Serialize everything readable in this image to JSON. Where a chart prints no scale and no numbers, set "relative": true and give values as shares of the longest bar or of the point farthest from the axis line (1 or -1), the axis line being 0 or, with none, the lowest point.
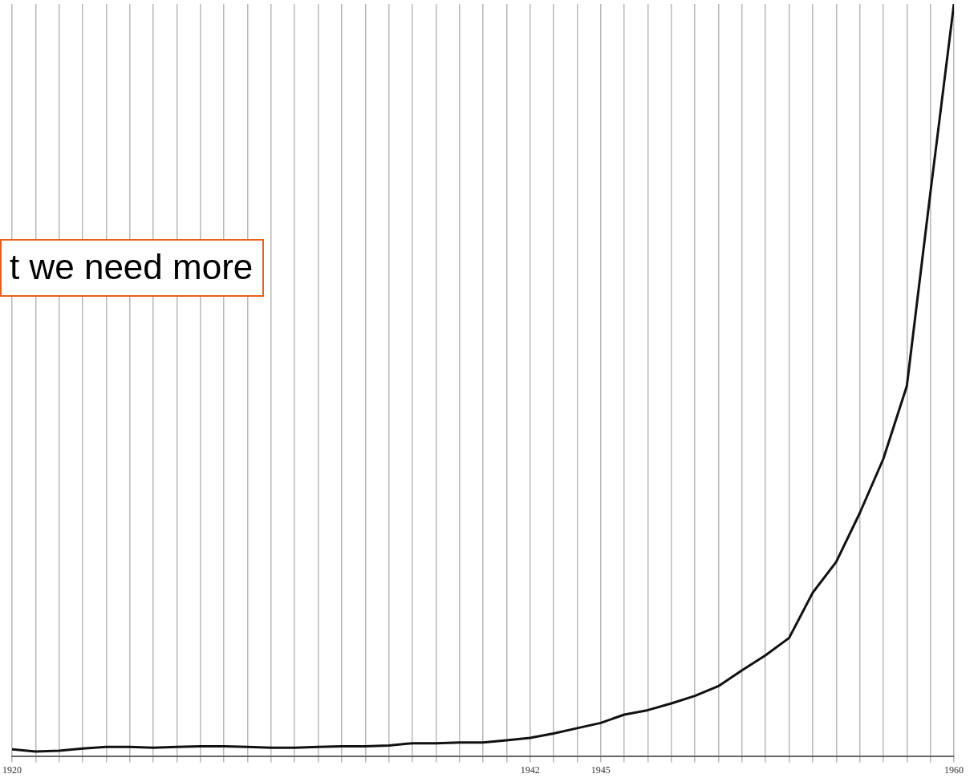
{
  "chart_data": {
    "type": "line",
    "relative": true,
    "grid": "x",
    "marker": "none",
    "line_style": "solid",
    "x": [
      1920,
      1921,
      1922,
      1923,
      1924,
      1925,
      1926,
      1927,
      1928,
      1929,
      1930,
      1931,
      1932,
      1933,
      1934,
      1935,
      1936,
      1937,
      1938,
      1939,
      1940,
      1941,
      1942,
      1943,
      1944,
      1945,
      1946,
      1947,
      1948,
      1949,
      1950,
      1951,
      1952,
      1953,
      1954,
      1955,
      1956,
      1957,
      1958,
      1959,
      1960
    ],
    "series": [
      {
        "color": "#111111",
        "values": [
          0.009,
          0.006,
          0.007,
          0.01,
          0.012,
          0.012,
          0.011,
          0.012,
          0.013,
          0.013,
          0.012,
          0.011,
          0.011,
          0.012,
          0.013,
          0.013,
          0.014,
          0.017,
          0.017,
          0.018,
          0.018,
          0.021,
          0.024,
          0.03,
          0.037,
          0.044,
          0.055,
          0.061,
          0.07,
          0.08,
          0.093,
          0.114,
          0.134,
          0.157,
          0.217,
          0.258,
          0.323,
          0.395,
          0.492,
          0.749,
          1
        ]
      }
    ],
    "xlim": [
      1920,
      1960
    ],
    "xticks": [
      1920,
      {
        "value": 1921,
        "label": null
      },
      {
        "value": 1922,
        "label": null
      },
      {
        "value": 1923,
        "label": null
      },
      {
        "value": 1924,
        "label": null
      },
      {
        "value": 1925,
        "label": null
      },
      {
        "value": 1926,
        "label": null
      },
      {
        "value": 1927,
        "label": null
      },
      {
        "value": 1928,
        "label": null
      },
      {
        "value": 1929,
        "label": null
      },
      {
        "value": 1930,
        "label": null
      },
      {
        "value": 1931,
        "label": null
      },
      {
        "value": 1932,
        "label": null
      },
      {
        "value": 1933,
        "label": null
      },
      {
        "value": 1934,
        "label": null
      },
      {
        "value": 1935,
        "label": null
      },
      {
        "value": 1936,
        "label": null
      },
      {
        "value": 1937,
        "label": null
      },
      {
        "value": 1938,
        "label": null
      },
      {
        "value": 1939,
        "label": null
      },
      {
        "value": 1940,
        "label": null
      },
      {
        "value": 1941,
        "label": null
      },
      1942,
      {
        "value": 1943,
        "label": null
      },
      {
        "value": 1944,
        "label": null
      },
      1945,
      {
        "value": 1946,
        "label": null
      },
      {
        "value": 1947,
        "label": null
      },
      {
        "value": 1948,
        "label": null
      },
      {
        "value": 1949,
        "label": null
      },
      {
        "value": 1950,
        "label": null
      },
      {
        "value": 1951,
        "label": null
      },
      {
        "value": 1952,
        "label": null
      },
      {
        "value": 1953,
        "label": null
      },
      {
        "value": 1954,
        "label": null
      },
      {
        "value": 1955,
        "label": null
      },
      {
        "value": 1956,
        "label": null
      },
      {
        "value": 1957,
        "label": null
      },
      {
        "value": 1958,
        "label": null
      },
      {
        "value": 1959,
        "label": null
      },
      1960
    ],
    "annotations": [
      "t we need more"
    ]
  }
}
